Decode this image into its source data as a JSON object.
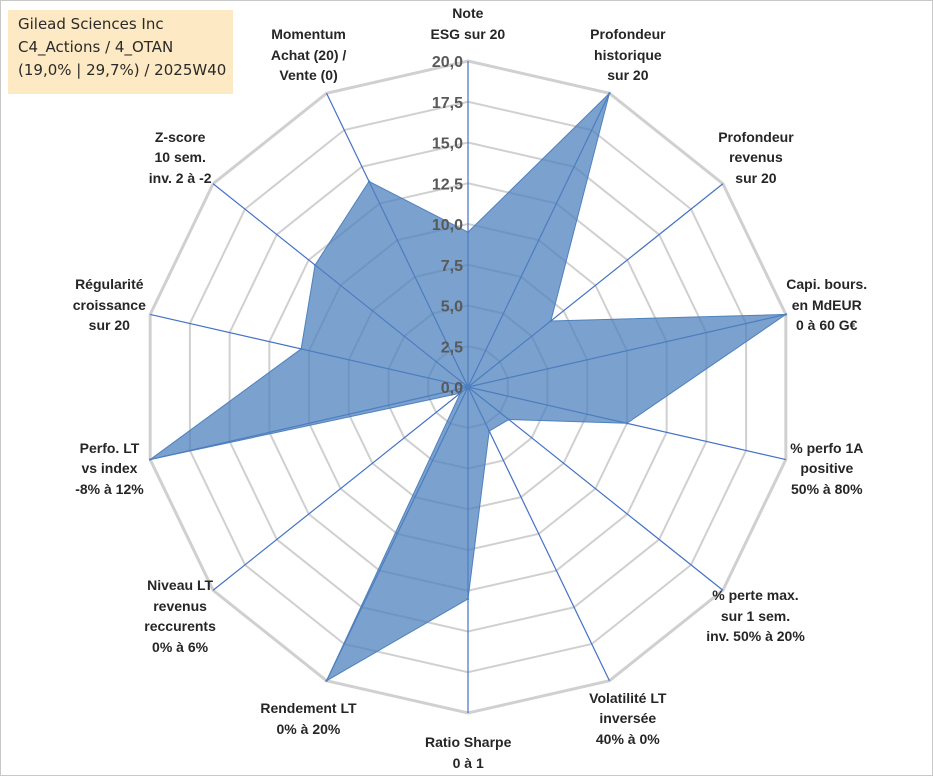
{
  "header": {
    "company": "Gilead Sciences Inc",
    "portfolio": "C4_Actions / 4_OTAN",
    "stats": "(19,0% | 29,7%) / 2025W40"
  },
  "chart_data": {
    "type": "radar",
    "title": "Gilead Sciences Inc",
    "rmin": 0,
    "rmax": 20,
    "tick_step": 2.5,
    "tick_labels": [
      "0,0",
      "2,5",
      "5,0",
      "7,5",
      "10,0",
      "12,5",
      "15,0",
      "17,5",
      "20,0"
    ],
    "categories": [
      [
        "Note",
        "ESG sur 20"
      ],
      [
        "Profondeur",
        "historique",
        "sur 20"
      ],
      [
        "Profondeur",
        "revenus",
        "sur 20"
      ],
      [
        "Capi. bours.",
        "en MdEUR",
        "0 à 60 G€"
      ],
      [
        "% perfo 1A",
        "positive",
        "50% à 80%"
      ],
      [
        "% perte max.",
        "sur 1 sem.",
        "inv. 50% à 20%"
      ],
      [
        "Volatilité LT",
        "inversée",
        "40% à 0%"
      ],
      [
        "Ratio Sharpe",
        "0 à 1"
      ],
      [
        "Rendement LT",
        "0% à 20%"
      ],
      [
        "Niveau LT",
        "revenus",
        "reccurents",
        "0% à 6%"
      ],
      [
        "Perfo. LT",
        "vs index",
        "-8% à 12%"
      ],
      [
        "Régularité",
        "croissance",
        "sur 20"
      ],
      [
        "Z-score",
        "10 sem.",
        "inv. 2 à -2"
      ],
      [
        "Momentum",
        "Achat (20) /",
        "Vente (0)"
      ]
    ],
    "series": [
      {
        "name": "Gilead Sciences Inc",
        "values": [
          9.5,
          20.0,
          6.5,
          20.0,
          10.0,
          3.2,
          3.0,
          13.0,
          20.0,
          0.6,
          20.0,
          10.5,
          12.0,
          14.0
        ],
        "color": "#4f81bd"
      }
    ]
  }
}
